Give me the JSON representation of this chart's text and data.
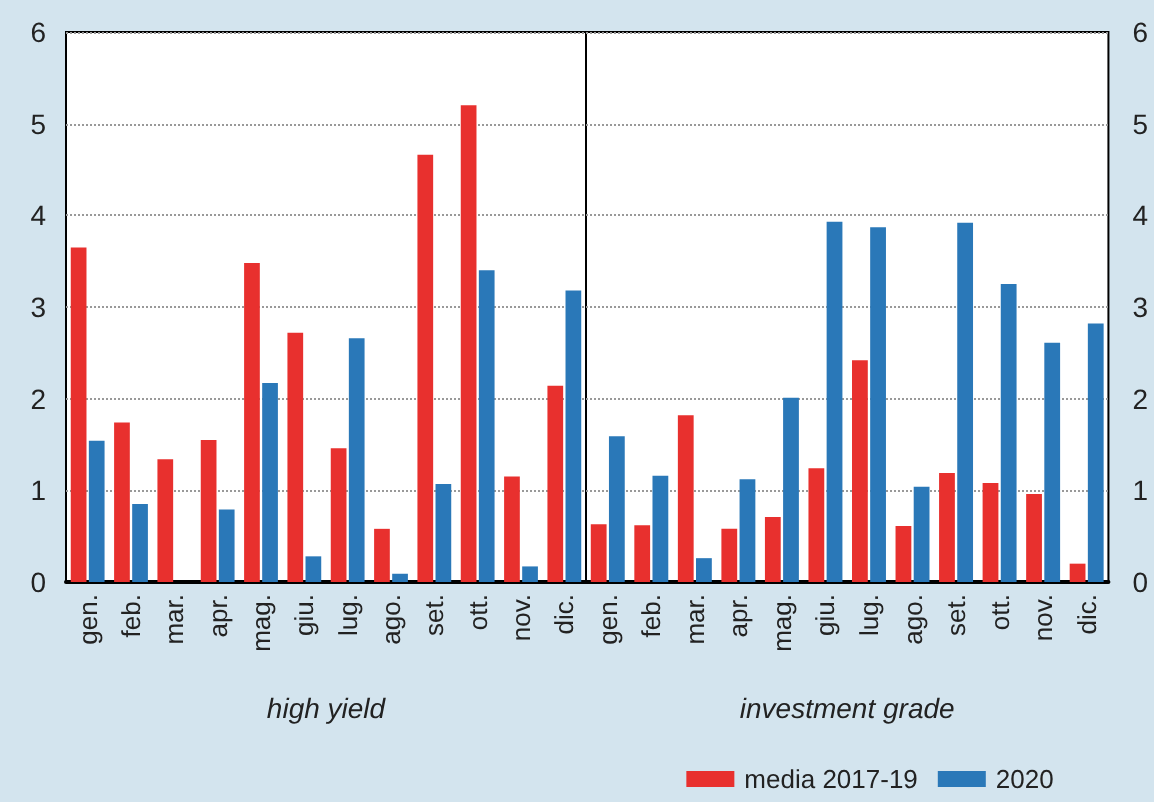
{
  "chart_data": [
    {
      "type": "bar",
      "xlabel": "high yield",
      "categories": [
        "gen.",
        "feb.",
        "mar.",
        "apr.",
        "mag.",
        "giu.",
        "lug.",
        "ago.",
        "set.",
        "ott.",
        "nov.",
        "dic."
      ],
      "series": [
        {
          "color": "#e8302e",
          "values": [
            3.65,
            1.74,
            1.34,
            1.55,
            3.48,
            2.72,
            1.46,
            0.58,
            4.66,
            5.2,
            1.15,
            2.14
          ]
        },
        {
          "color": "#2a78b8",
          "values": [
            1.54,
            0.85,
            null,
            0.79,
            2.17,
            0.28,
            2.66,
            0.09,
            1.07,
            3.4,
            0.17,
            3.18
          ]
        }
      ],
      "ylim": [
        0,
        6
      ],
      "yticks": [
        0,
        1,
        2,
        3,
        4,
        5,
        6
      ],
      "grid": "y",
      "legend": false
    },
    {
      "type": "bar",
      "xlabel": "investment grade",
      "categories": [
        "gen.",
        "feb.",
        "mar.",
        "apr.",
        "mag.",
        "giu.",
        "lug.",
        "ago.",
        "set.",
        "ott.",
        "nov.",
        "dic."
      ],
      "series": [
        {
          "name": "media 2017-19",
          "color": "#e8302e",
          "values": [
            0.63,
            0.62,
            1.82,
            0.58,
            0.71,
            1.24,
            2.42,
            0.61,
            1.19,
            1.08,
            0.96,
            0.2
          ]
        },
        {
          "name": "2020",
          "color": "#2a78b8",
          "values": [
            1.59,
            1.16,
            0.26,
            1.12,
            2.01,
            3.93,
            3.87,
            1.04,
            3.92,
            3.25,
            2.61,
            2.82
          ]
        }
      ],
      "ylim": [
        0,
        6
      ],
      "yticks": [
        0,
        1,
        2,
        3,
        4,
        5,
        6
      ],
      "grid": "y",
      "legend": "bottom"
    }
  ]
}
